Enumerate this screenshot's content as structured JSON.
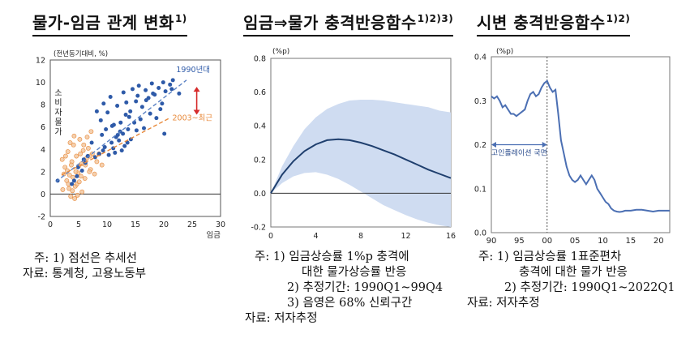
{
  "panels": [
    {
      "title": "물가-임금 관계 변화",
      "title_sup": "1)",
      "notes": [
        "주: 1) 점선은 추세선",
        "자료: 통계청, 고용노동부"
      ]
    },
    {
      "title": "임금⇒물가 충격반응함수",
      "title_sup": "1)2)3)",
      "notes": [
        "주: 1) 임금상승률 1%p 충격에",
        "대한 물가상승률 반응",
        "2) 추정기간: 1990Q1~99Q4",
        "3) 음영은 68% 신뢰구간",
        "자료: 저자추정"
      ]
    },
    {
      "title": "시변 충격반응함수",
      "title_sup": "1)2)",
      "notes": [
        "주: 1) 임금상승률 1표준편차",
        "충격에 대한 물가 반응",
        "2) 추정기간: 1990Q1~2022Q1",
        "자료: 저자추정"
      ]
    }
  ],
  "chart_data": [
    {
      "type": "scatter",
      "title": "물가-임금 관계 변화",
      "unit_label": "(전년동기대비, %)",
      "xlabel": "임금",
      "ylabel": "소비자물가",
      "xlim": [
        0,
        30
      ],
      "ylim": [
        -2,
        12
      ],
      "xticks": [
        0,
        5,
        10,
        15,
        20,
        25,
        30
      ],
      "yticks": [
        -2,
        0,
        2,
        4,
        6,
        8,
        10,
        12
      ],
      "colors": {
        "s1990": "#2e5aa8",
        "s2003": "#e8893a"
      },
      "series": [
        {
          "name": "1990년대",
          "points": [
            [
              8.2,
              7.4
            ],
            [
              8.9,
              6.6
            ],
            [
              9.4,
              8.1
            ],
            [
              10.1,
              7.3
            ],
            [
              10.6,
              8.7
            ],
            [
              11.2,
              6.2
            ],
            [
              11.8,
              7.9
            ],
            [
              12.3,
              5.6
            ],
            [
              12.9,
              9.1
            ],
            [
              13.4,
              8.2
            ],
            [
              13.9,
              6.9
            ],
            [
              14.5,
              9.4
            ],
            [
              15.1,
              8.3
            ],
            [
              15.6,
              9.7
            ],
            [
              16.2,
              7.8
            ],
            [
              16.8,
              9.3
            ],
            [
              17.3,
              8.6
            ],
            [
              17.9,
              9.9
            ],
            [
              18.4,
              8.9
            ],
            [
              19.1,
              9.5
            ],
            [
              19.7,
              8.1
            ],
            [
              20.3,
              9.2
            ],
            [
              21.1,
              9.8
            ],
            [
              21.6,
              10.2
            ],
            [
              12.1,
              4.8
            ],
            [
              12.6,
              3.9
            ],
            [
              11.4,
              3.7
            ],
            [
              13.1,
              4.3
            ],
            [
              10.8,
              4.6
            ],
            [
              11.6,
              5.1
            ],
            [
              14.2,
              4.9
            ],
            [
              10.3,
              3.5
            ],
            [
              9.6,
              4.2
            ],
            [
              9.1,
              5.3
            ],
            [
              13.7,
              5.8
            ],
            [
              14.8,
              6.4
            ],
            [
              15.9,
              6.7
            ],
            [
              16.5,
              5.9
            ],
            [
              17.6,
              7.2
            ],
            [
              18.7,
              6.8
            ],
            [
              19.4,
              7.6
            ],
            [
              20.1,
              5.4
            ],
            [
              12.4,
              6.4
            ],
            [
              11.9,
              5.3
            ],
            [
              13.3,
              7.1
            ],
            [
              8.6,
              3.6
            ],
            [
              7.9,
              3.3
            ],
            [
              6.2,
              2.8
            ],
            [
              5.6,
              2.1
            ],
            [
              4.7,
              1.6
            ],
            [
              4.2,
              1.2
            ],
            [
              3.8,
              0.9
            ],
            [
              4.9,
              2.4
            ],
            [
              5.9,
              3.1
            ],
            [
              6.6,
              3.4
            ],
            [
              7.3,
              4.6
            ],
            [
              1.3,
              1.2
            ],
            [
              9.8,
              5.8
            ],
            [
              10.9,
              6.1
            ],
            [
              14.1,
              7.4
            ],
            [
              15.4,
              8.8
            ],
            [
              16.9,
              8.4
            ],
            [
              18.1,
              9.0
            ],
            [
              19.9,
              10.0
            ],
            [
              21.4,
              9.4
            ],
            [
              22.7,
              9.0
            ],
            [
              12.8,
              5.4
            ],
            [
              13.6,
              4.6
            ],
            [
              11.1,
              4.1
            ],
            [
              9.3,
              3.9
            ],
            [
              15.2,
              5.7
            ]
          ]
        },
        {
          "name": "2003~최근",
          "points": [
            [
              2.1,
              3.1
            ],
            [
              2.6,
              2.4
            ],
            [
              3.1,
              3.8
            ],
            [
              3.4,
              1.7
            ],
            [
              3.8,
              2.9
            ],
            [
              4.1,
              4.4
            ],
            [
              4.4,
              0.7
            ],
            [
              4.6,
              3.4
            ],
            [
              4.9,
              1.9
            ],
            [
              5.2,
              4.9
            ],
            [
              5.5,
              2.7
            ],
            [
              5.8,
              3.9
            ],
            [
              6.1,
              1.4
            ],
            [
              6.4,
              3.2
            ],
            [
              6.7,
              4.1
            ],
            [
              7.1,
              2.2
            ],
            [
              7.4,
              3.6
            ],
            [
              7.8,
              1.8
            ],
            [
              8.2,
              2.9
            ],
            [
              3.6,
              -0.2
            ],
            [
              3.9,
              0.3
            ],
            [
              4.3,
              -0.4
            ],
            [
              4.7,
              0.9
            ],
            [
              2.9,
              1.2
            ],
            [
              3.3,
              0.5
            ],
            [
              5.1,
              1.1
            ],
            [
              5.6,
              0.2
            ],
            [
              6.2,
              2.6
            ],
            [
              2.4,
              1.8
            ],
            [
              3.0,
              2.1
            ],
            [
              4.0,
              1.5
            ],
            [
              5.0,
              2.5
            ],
            [
              6.0,
              3.0
            ],
            [
              7.0,
              3.4
            ],
            [
              4.5,
              2.0
            ],
            [
              3.7,
              2.6
            ],
            [
              5.3,
              3.6
            ],
            [
              6.5,
              5.1
            ],
            [
              7.2,
              5.6
            ],
            [
              4.2,
              5.2
            ],
            [
              3.5,
              4.6
            ],
            [
              2.7,
              3.4
            ],
            [
              5.9,
              4.4
            ],
            [
              6.9,
              2.0
            ],
            [
              8.6,
              3.6
            ],
            [
              9.1,
              2.6
            ],
            [
              3.2,
              0.9
            ],
            [
              4.8,
              -0.1
            ],
            [
              5.4,
              1.6
            ],
            [
              2.2,
              0.4
            ]
          ]
        }
      ],
      "trend_lines": [
        {
          "name": "1990년대",
          "from": [
            1.0,
            1.1
          ],
          "to": [
            24.0,
            10.2
          ]
        },
        {
          "name": "2003~최근",
          "from": [
            2.0,
            1.7
          ],
          "to": [
            21.0,
            6.8
          ]
        }
      ],
      "annotations": {
        "label_1990": "1990년대",
        "label_2003": "2003~최근"
      }
    },
    {
      "type": "area",
      "title": "임금⇒물가 충격반응함수",
      "unit_label": "(%p)",
      "xlim": [
        0,
        16
      ],
      "ylim": [
        -0.2,
        0.8
      ],
      "xticks": [
        0,
        4,
        8,
        12,
        16
      ],
      "yticks": [
        -0.2,
        0.0,
        0.2,
        0.4,
        0.6,
        0.8
      ],
      "colors": {
        "line": "#1f3f6e",
        "band": "#cfdcf1"
      },
      "x": [
        0,
        1,
        2,
        3,
        4,
        5,
        6,
        7,
        8,
        9,
        10,
        11,
        12,
        13,
        14,
        15,
        16
      ],
      "response": [
        0.0,
        0.11,
        0.19,
        0.25,
        0.29,
        0.315,
        0.32,
        0.315,
        0.3,
        0.28,
        0.255,
        0.23,
        0.2,
        0.17,
        0.14,
        0.115,
        0.09
      ],
      "lower": [
        0.0,
        0.06,
        0.1,
        0.12,
        0.125,
        0.11,
        0.085,
        0.05,
        0.01,
        -0.03,
        -0.07,
        -0.1,
        -0.13,
        -0.155,
        -0.175,
        -0.19,
        -0.2
      ],
      "upper": [
        0.0,
        0.16,
        0.28,
        0.38,
        0.45,
        0.5,
        0.53,
        0.55,
        0.555,
        0.555,
        0.55,
        0.54,
        0.53,
        0.52,
        0.51,
        0.49,
        0.48
      ]
    },
    {
      "type": "line",
      "title": "시변 충격반응함수",
      "unit_label": "(%p)",
      "xlim": [
        1990,
        2022
      ],
      "ylim": [
        0.0,
        0.4
      ],
      "xtick_values": [
        1990,
        1995,
        2000,
        2005,
        2010,
        2015,
        2020
      ],
      "xtick_labels": [
        "90",
        "95",
        "00",
        "05",
        "10",
        "15",
        "20"
      ],
      "yticks": [
        0.0,
        0.1,
        0.2,
        0.3,
        0.4
      ],
      "colors": {
        "line": "#4b6fb3"
      },
      "regime_label": "고인플레이션 국면",
      "regime_range": [
        1990,
        2000
      ],
      "x": [
        1990,
        1990.5,
        1991,
        1991.5,
        1992,
        1992.5,
        1993,
        1993.5,
        1994,
        1994.5,
        1995,
        1995.5,
        1996,
        1996.5,
        1997,
        1997.5,
        1998,
        1998.5,
        1999,
        1999.5,
        2000,
        2000.5,
        2001,
        2001.5,
        2002,
        2002.5,
        2003,
        2003.5,
        2004,
        2004.5,
        2005,
        2005.5,
        2006,
        2006.5,
        2007,
        2007.5,
        2008,
        2008.5,
        2009,
        2009.5,
        2010,
        2010.5,
        2011,
        2011.5,
        2012,
        2012.5,
        2013,
        2013.5,
        2014,
        2015,
        2016,
        2017,
        2018,
        2019,
        2020,
        2021,
        2022
      ],
      "values": [
        0.31,
        0.305,
        0.31,
        0.3,
        0.285,
        0.29,
        0.28,
        0.27,
        0.27,
        0.265,
        0.27,
        0.275,
        0.28,
        0.3,
        0.315,
        0.32,
        0.31,
        0.315,
        0.33,
        0.34,
        0.345,
        0.33,
        0.32,
        0.325,
        0.27,
        0.21,
        0.18,
        0.15,
        0.13,
        0.12,
        0.115,
        0.12,
        0.13,
        0.12,
        0.11,
        0.12,
        0.13,
        0.12,
        0.1,
        0.09,
        0.08,
        0.07,
        0.065,
        0.055,
        0.05,
        0.048,
        0.047,
        0.048,
        0.05,
        0.05,
        0.052,
        0.052,
        0.05,
        0.048,
        0.05,
        0.05,
        0.05
      ]
    }
  ]
}
